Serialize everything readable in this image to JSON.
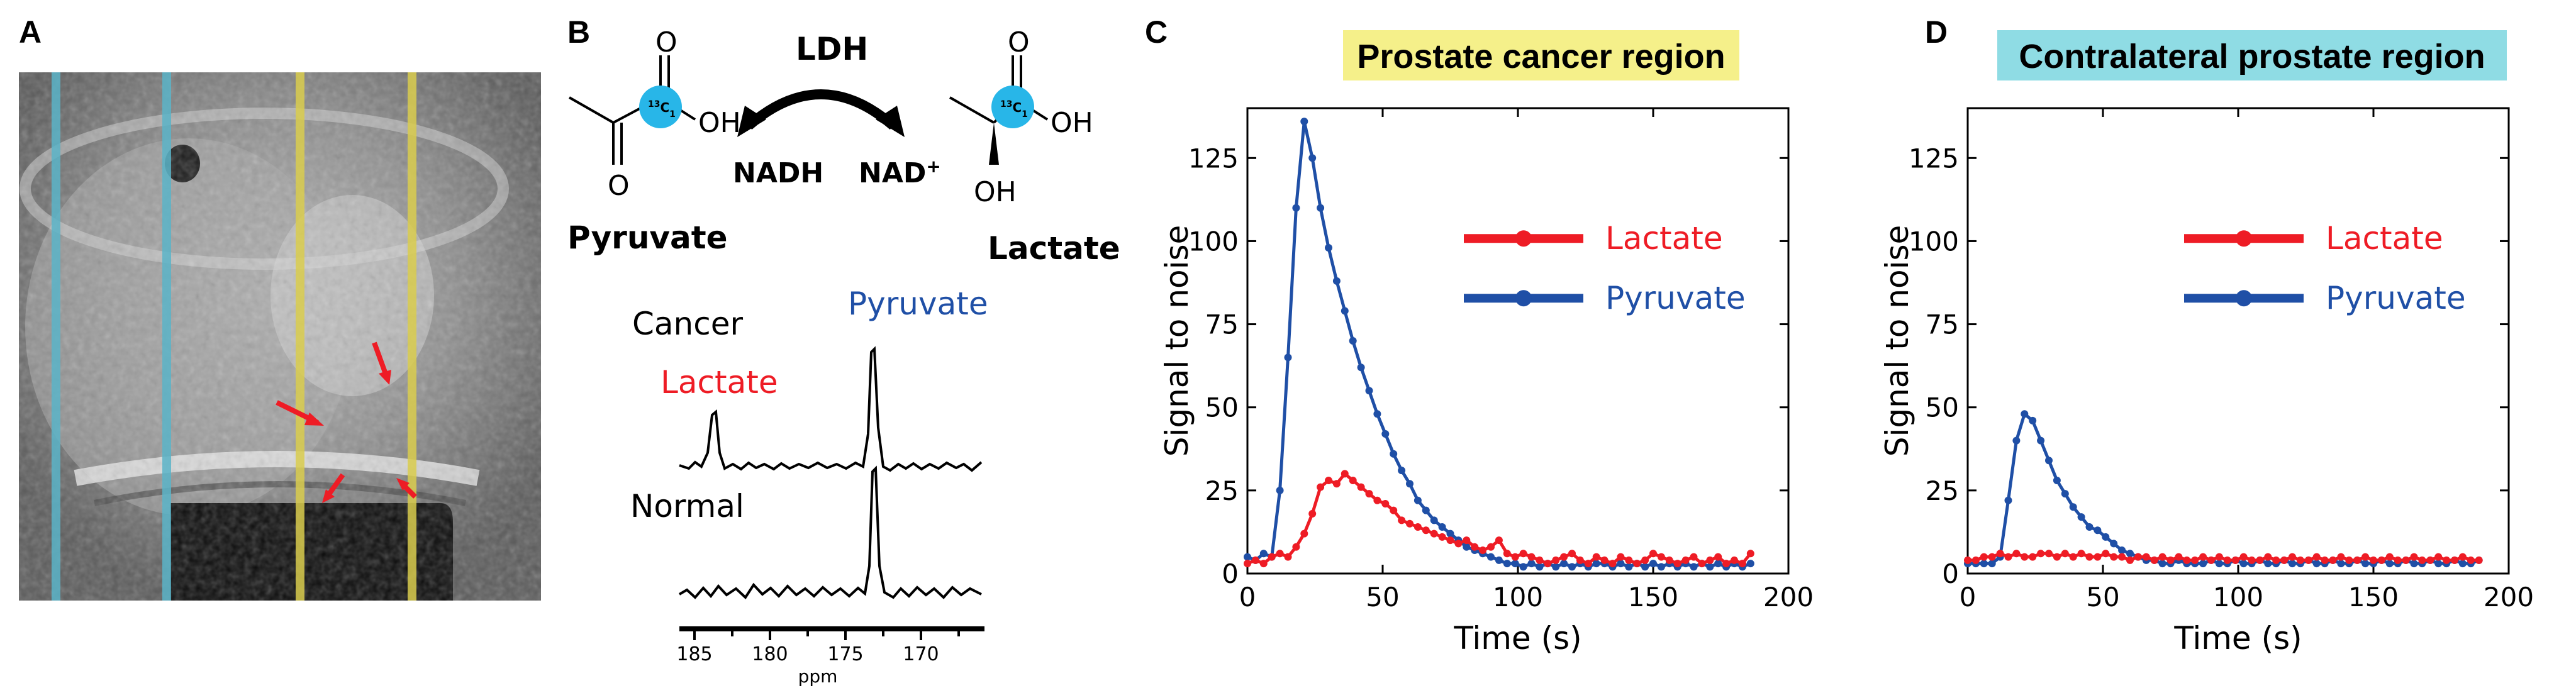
{
  "panels": {
    "a": {
      "letter": "A"
    },
    "b": {
      "letter": "B",
      "enzyme": "LDH",
      "cofactor_left": "NADH",
      "cofactor_right_base": "NAD",
      "cofactor_right_sup": "+",
      "pyruvate_name": "Pyruvate",
      "lactate_name": "Lactate",
      "label_13c_sup": "13",
      "label_13c_main": "C",
      "label_13c_sub": "1",
      "oxygen": "O",
      "hydroxyl": "OH",
      "hydroxyl_side": "OH",
      "spectrum_cancer": "Cancer",
      "spectrum_normal": "Normal",
      "peak_lactate": "Lactate",
      "peak_pyruvate": "Pyruvate",
      "ppm_ticks": [
        "185",
        "180",
        "175",
        "170"
      ],
      "ppm_label": "ppm"
    },
    "c": {
      "letter": "C"
    },
    "d": {
      "letter": "D"
    }
  },
  "colors": {
    "lactate": "#ee1c25",
    "pyruvate": "#1f4fa6",
    "cancer_title_bg": "#f5f08a",
    "normal_title_bg": "#8fdce4",
    "mri_yellow": "#d9cd4e",
    "mri_blue": "#5bb4c8",
    "arrow_red": "#ee1c25",
    "carbon_marker": "#28b6e8"
  },
  "chart_data": [
    {
      "type": "line",
      "title": "Prostate cancer region",
      "xlabel": "Time (s)",
      "ylabel": "Signal to noise",
      "xlim": [
        0,
        200
      ],
      "ylim": [
        0,
        140
      ],
      "xticks": [
        0,
        50,
        100,
        150,
        200
      ],
      "yticks": [
        0,
        25,
        50,
        75,
        100,
        125
      ],
      "legend_position": "upper-right",
      "series": [
        {
          "name": "Lactate",
          "color": "#ee1c25",
          "x": [
            0,
            3,
            6,
            9,
            12,
            15,
            18,
            21,
            24,
            27,
            30,
            33,
            36,
            39,
            42,
            45,
            48,
            51,
            54,
            57,
            60,
            63,
            66,
            69,
            72,
            75,
            78,
            81,
            84,
            87,
            90,
            93,
            96,
            99,
            102,
            105,
            108,
            111,
            114,
            117,
            120,
            123,
            126,
            129,
            132,
            135,
            138,
            141,
            144,
            147,
            150,
            153,
            156,
            159,
            162,
            165,
            168,
            171,
            174,
            177,
            180,
            183,
            186
          ],
          "y": [
            3,
            4,
            3,
            5,
            6,
            5,
            8,
            12,
            18,
            26,
            28,
            27,
            30,
            28,
            26,
            24,
            22,
            21,
            19,
            16,
            15,
            14,
            13,
            12,
            11,
            10,
            9,
            10,
            8,
            7,
            8,
            10,
            6,
            5,
            6,
            5,
            4,
            3,
            4,
            5,
            6,
            4,
            3,
            5,
            4,
            3,
            5,
            4,
            3,
            4,
            6,
            5,
            4,
            3,
            4,
            5,
            3,
            4,
            5,
            3,
            4,
            3,
            6
          ]
        },
        {
          "name": "Pyruvate",
          "color": "#1f4fa6",
          "x": [
            0,
            3,
            6,
            9,
            12,
            15,
            18,
            21,
            24,
            27,
            30,
            33,
            36,
            39,
            42,
            45,
            48,
            51,
            54,
            57,
            60,
            63,
            66,
            69,
            72,
            75,
            78,
            81,
            84,
            87,
            90,
            93,
            96,
            99,
            102,
            105,
            108,
            111,
            114,
            117,
            120,
            123,
            126,
            129,
            132,
            135,
            138,
            141,
            144,
            147,
            150,
            153,
            156,
            159,
            162,
            165,
            168,
            171,
            174,
            177,
            180,
            183,
            186
          ],
          "y": [
            5,
            4,
            6,
            5,
            25,
            65,
            110,
            136,
            125,
            110,
            98,
            88,
            79,
            70,
            62,
            55,
            48,
            42,
            36,
            31,
            27,
            22,
            19,
            16,
            14,
            12,
            10,
            8,
            7,
            6,
            5,
            4,
            3,
            3,
            2,
            3,
            2,
            3,
            2,
            3,
            2,
            3,
            2,
            3,
            3,
            2,
            3,
            2,
            3,
            2,
            3,
            2,
            3,
            2,
            3,
            2,
            3,
            2,
            3,
            2,
            3,
            2,
            3
          ]
        }
      ]
    },
    {
      "type": "line",
      "title": "Contralateral prostate region",
      "xlabel": "Time (s)",
      "ylabel": "Signal to noise",
      "xlim": [
        0,
        200
      ],
      "ylim": [
        0,
        140
      ],
      "xticks": [
        0,
        50,
        100,
        150,
        200
      ],
      "yticks": [
        0,
        25,
        50,
        75,
        100,
        125
      ],
      "legend_position": "upper-right",
      "series": [
        {
          "name": "Lactate",
          "color": "#ee1c25",
          "x": [
            0,
            3,
            6,
            9,
            12,
            15,
            18,
            21,
            24,
            27,
            30,
            33,
            36,
            39,
            42,
            45,
            48,
            51,
            54,
            57,
            60,
            63,
            66,
            69,
            72,
            75,
            78,
            81,
            84,
            87,
            90,
            93,
            96,
            99,
            102,
            105,
            108,
            111,
            114,
            117,
            120,
            123,
            126,
            129,
            132,
            135,
            138,
            141,
            144,
            147,
            150,
            153,
            156,
            159,
            162,
            165,
            168,
            171,
            174,
            177,
            180,
            183,
            186,
            189
          ],
          "y": [
            4,
            4,
            5,
            5,
            6,
            5,
            6,
            5,
            5,
            6,
            6,
            5,
            6,
            5,
            6,
            5,
            5,
            6,
            5,
            5,
            4,
            5,
            5,
            4,
            5,
            4,
            5,
            4,
            4,
            5,
            4,
            5,
            4,
            4,
            5,
            4,
            4,
            5,
            4,
            4,
            5,
            4,
            4,
            5,
            4,
            4,
            5,
            4,
            4,
            5,
            4,
            4,
            5,
            4,
            4,
            5,
            4,
            4,
            5,
            4,
            4,
            5,
            4,
            4
          ]
        },
        {
          "name": "Pyruvate",
          "color": "#1f4fa6",
          "x": [
            0,
            3,
            6,
            9,
            12,
            15,
            18,
            21,
            24,
            27,
            30,
            33,
            36,
            39,
            42,
            45,
            48,
            51,
            54,
            57,
            60,
            63,
            66,
            69,
            72,
            75,
            78,
            81,
            84,
            87,
            90,
            93,
            96,
            99,
            102,
            105,
            108,
            111,
            114,
            117,
            120,
            123,
            126,
            129,
            132,
            135,
            138,
            141,
            144,
            147,
            150,
            153,
            156,
            159,
            162,
            165,
            168,
            171,
            174,
            177,
            180,
            183,
            186,
            189
          ],
          "y": [
            3,
            3,
            3,
            3,
            5,
            22,
            40,
            48,
            46,
            40,
            34,
            28,
            24,
            20,
            17,
            14,
            13,
            11,
            9,
            7,
            6,
            5,
            4,
            4,
            3,
            3,
            4,
            3,
            3,
            3,
            4,
            3,
            3,
            4,
            3,
            3,
            4,
            3,
            3,
            4,
            3,
            3,
            4,
            3,
            3,
            4,
            3,
            3,
            4,
            3,
            3,
            4,
            3,
            3,
            4,
            3,
            3,
            4,
            3,
            3,
            4,
            3,
            3,
            4
          ]
        }
      ]
    }
  ]
}
